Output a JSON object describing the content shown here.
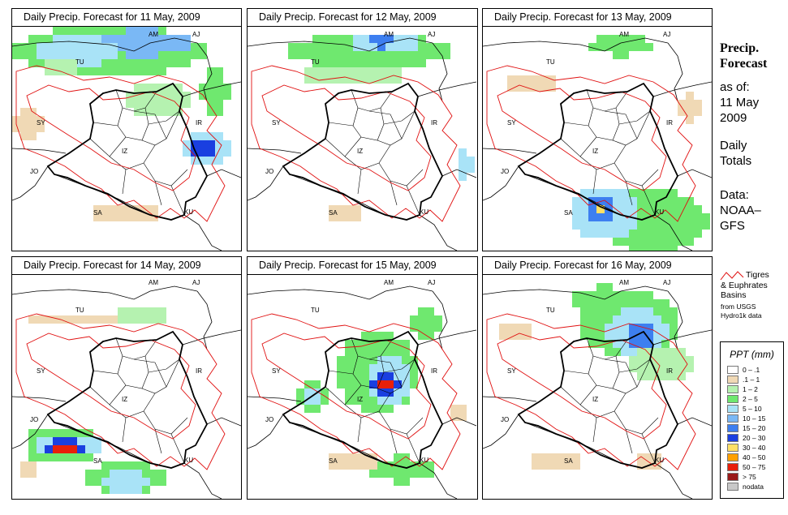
{
  "panels": [
    {
      "title": "Daily Precip. Forecast for  11 May, 2009"
    },
    {
      "title": "Daily Precip. Forecast for  12 May, 2009"
    },
    {
      "title": "Daily Precip. Forecast for  13 May, 2009"
    },
    {
      "title": "Daily Precip. Forecast for  14 May, 2009"
    },
    {
      "title": "Daily Precip. Forecast for  15 May, 2009"
    },
    {
      "title": "Daily Precip. Forecast for  16 May, 2009"
    }
  ],
  "country_labels": [
    "AM",
    "AJ",
    "TU",
    "SY",
    "IR",
    "IZ",
    "JO",
    "SA",
    "KU"
  ],
  "side": {
    "title_line1": "Precip.",
    "title_line2": "Forecast",
    "as_of": "as of:",
    "date_line1": "11 May",
    "date_line2": "2009",
    "daily_line1": "Daily",
    "daily_line2": "Totals",
    "data_line1": "Data:",
    "data_line2": "NOAA–",
    "data_line3": "GFS"
  },
  "basins_legend": {
    "line1": "Tigres",
    "line2": "& Euphrates",
    "line3": "Basins",
    "line4": "from USGS",
    "line5": "Hydro1k data",
    "color": "#e01010"
  },
  "ppt_legend": {
    "title": "PPT (mm)",
    "items": [
      {
        "label": "0 – .1",
        "color": "#ffffff"
      },
      {
        "label": ".1 – 1",
        "color": "#f0d9b5"
      },
      {
        "label": "1 – 2",
        "color": "#b5f2b0"
      },
      {
        "label": "2 – 5",
        "color": "#6fe86f"
      },
      {
        "label": "5 – 10",
        "color": "#a9e3f7"
      },
      {
        "label": "10 – 15",
        "color": "#7ab8f5"
      },
      {
        "label": "15 – 20",
        "color": "#3d7ff0"
      },
      {
        "label": "20 – 30",
        "color": "#1a3fe0"
      },
      {
        "label": "30 – 40",
        "color": "#ffe066"
      },
      {
        "label": "40 – 50",
        "color": "#ffa000"
      },
      {
        "label": "50 – 75",
        "color": "#e8200a"
      },
      {
        "label": "> 75",
        "color": "#9a1a1a"
      },
      {
        "label": "nodata",
        "color": "#c8c8c8"
      }
    ]
  }
}
